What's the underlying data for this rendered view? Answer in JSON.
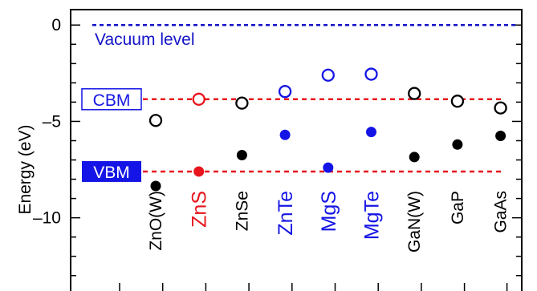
{
  "chart_data": {
    "type": "scatter",
    "ylabel": "Energy (eV)",
    "ylim": [
      -13.8,
      0.8
    ],
    "yticks": [
      {
        "value": 0,
        "label": "0"
      },
      {
        "value": -5,
        "label": "–5"
      },
      {
        "value": -10,
        "label": "–10"
      }
    ],
    "colors": {
      "black": "#000000",
      "red": "#e8141c",
      "blue": "#1414e6",
      "vacuum": "#1414c8"
    },
    "materials": [
      {
        "name": "ZnO(W)",
        "color": "black",
        "cbm": -4.95,
        "vbm": -8.35
      },
      {
        "name": "ZnS",
        "color": "red",
        "cbm": -3.85,
        "vbm": -7.6
      },
      {
        "name": "ZnSe",
        "color": "black",
        "cbm": -4.05,
        "vbm": -6.75
      },
      {
        "name": "ZnTe",
        "color": "blue",
        "cbm": -3.45,
        "vbm": -5.7
      },
      {
        "name": "MgS",
        "color": "blue",
        "cbm": -2.6,
        "vbm": -7.4
      },
      {
        "name": "MgTe",
        "color": "blue",
        "cbm": -2.55,
        "vbm": -5.55
      },
      {
        "name": "GaN(W)",
        "color": "black",
        "cbm": -3.55,
        "vbm": -6.85
      },
      {
        "name": "GaP",
        "color": "black",
        "cbm": -3.95,
        "vbm": -6.2
      },
      {
        "name": "GaAs",
        "color": "black",
        "cbm": -4.3,
        "vbm": -5.75
      }
    ],
    "reference_lines": [
      {
        "label": "Vacuum level",
        "value": 0,
        "color": "vacuum",
        "style": "dashed"
      },
      {
        "label": "CBM",
        "value": -3.85,
        "color": "red",
        "style": "dashed"
      },
      {
        "label": "VBM",
        "value": -7.6,
        "color": "red",
        "style": "dashed"
      }
    ],
    "legend": {
      "open_marker_label": "CBM",
      "filled_marker_label": "VBM"
    }
  }
}
